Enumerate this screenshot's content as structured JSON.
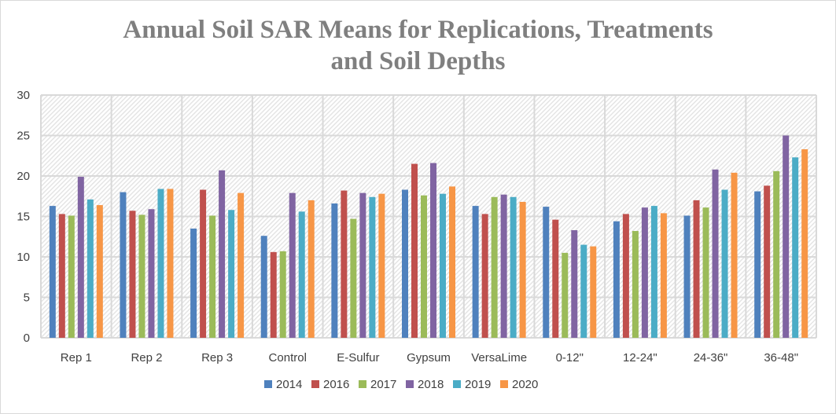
{
  "chart_data": {
    "type": "bar",
    "title": "Annual Soil SAR Means for Replications, Treatments and Soil Depths",
    "title_lines": [
      "Annual Soil SAR Means for Replications, Treatments",
      "and Soil Depths"
    ],
    "xlabel": "",
    "ylabel": "",
    "ylim": [
      0,
      30
    ],
    "yticks": [
      0,
      5,
      10,
      15,
      20,
      25,
      30
    ],
    "grid": true,
    "legend_position": "bottom",
    "categories": [
      "Rep 1",
      "Rep 2",
      "Rep 3",
      "Control",
      "E-Sulfur",
      "Gypsum",
      "VersaLime",
      "0-12\"",
      "12-24\"",
      "24-36\"",
      "36-48\""
    ],
    "series": [
      {
        "name": "2014",
        "color": "#4f81bd",
        "values": [
          16.3,
          18.0,
          13.5,
          12.6,
          16.6,
          18.3,
          16.3,
          16.2,
          14.4,
          15.1,
          18.1
        ]
      },
      {
        "name": "2016",
        "color": "#c0504d",
        "values": [
          15.3,
          15.7,
          18.3,
          10.6,
          18.2,
          21.5,
          15.3,
          14.6,
          15.3,
          17.0,
          18.8
        ]
      },
      {
        "name": "2017",
        "color": "#9bbb59",
        "values": [
          15.1,
          15.2,
          15.1,
          10.7,
          14.7,
          17.6,
          17.4,
          10.5,
          13.2,
          16.1,
          20.6
        ]
      },
      {
        "name": "2018",
        "color": "#8064a2",
        "values": [
          19.9,
          15.9,
          20.7,
          17.9,
          17.9,
          21.6,
          17.7,
          13.3,
          16.1,
          20.8,
          25.0
        ]
      },
      {
        "name": "2019",
        "color": "#4bacc6",
        "values": [
          17.1,
          18.4,
          15.8,
          15.6,
          17.4,
          17.8,
          17.4,
          11.5,
          16.3,
          18.3,
          22.3
        ]
      },
      {
        "name": "2020",
        "color": "#f79646",
        "values": [
          16.4,
          18.4,
          17.9,
          17.0,
          17.8,
          18.7,
          16.8,
          11.3,
          15.4,
          20.4,
          23.3
        ]
      }
    ]
  }
}
